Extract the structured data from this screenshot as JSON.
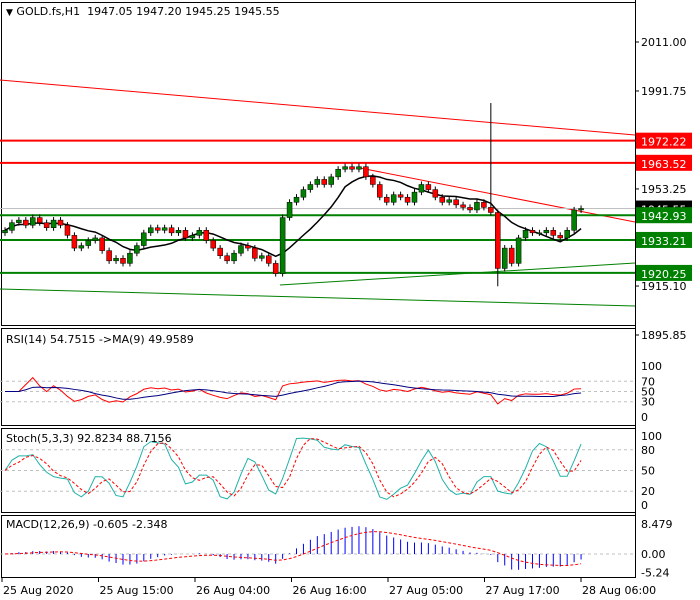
{
  "header": {
    "arrow": "▼",
    "symbol": "GOLD.fs,H1",
    "open": "1947.05",
    "high": "1947.20",
    "low": "1945.25",
    "close": "1945.55"
  },
  "colors": {
    "bull": "#008000",
    "bear": "#ff0000",
    "line_red": "#ff0000",
    "line_green": "#008000",
    "rsi": "#ff0000",
    "rsi_ma": "#000080",
    "stoch_main": "#20b2aa",
    "stoch_signal": "#ff0000",
    "macd_hist": "#0000ff",
    "macd_signal": "#ff0000"
  },
  "chart_data": {
    "type": "candlestick",
    "title": "GOLD.fs,H1",
    "price_axis": [
      "2011.00",
      "1991.75",
      "1953.25",
      "1915.10",
      "1895.85"
    ],
    "ylim": [
      1890,
      2020
    ],
    "levels": [
      {
        "price": 1972.22,
        "label": "1972.22",
        "color": "#ff0000"
      },
      {
        "price": 1963.52,
        "label": "1963.52",
        "color": "#ff0000"
      },
      {
        "price": 1945.55,
        "label": "1945.55",
        "color": "#000000"
      },
      {
        "price": 1942.93,
        "label": "1942.93",
        "color": "#008000"
      },
      {
        "price": 1933.21,
        "label": "1933.21",
        "color": "#008000"
      },
      {
        "price": 1920.25,
        "label": "1920.25",
        "color": "#008000"
      }
    ],
    "closes": [
      1937,
      1940,
      1941,
      1939,
      1942,
      1940,
      1938,
      1941,
      1939,
      1935,
      1930,
      1931,
      1933,
      1934,
      1929,
      1925,
      1926,
      1924,
      1928,
      1931,
      1936,
      1938,
      1937,
      1938,
      1936,
      1937,
      1934,
      1935,
      1937,
      1933,
      1930,
      1927,
      1925,
      1928,
      1931,
      1930,
      1926,
      1927,
      1924,
      1920,
      1942,
      1948,
      1950,
      1953,
      1955,
      1957,
      1955,
      1958,
      1961,
      1962,
      1961,
      1962,
      1958,
      1955,
      1950,
      1948,
      1951,
      1950,
      1948,
      1952,
      1955,
      1953,
      1950,
      1948,
      1949,
      1947,
      1946,
      1945,
      1948,
      1946,
      1944,
      1922,
      1930,
      1924,
      1934,
      1937,
      1936,
      1936,
      1937,
      1935,
      1934,
      1937,
      1945,
      1945.55
    ],
    "spike_high": 1987,
    "time_axis": [
      "25 Aug 2020",
      "25 Aug 15:00",
      "26 Aug 04:00",
      "26 Aug 16:00",
      "27 Aug 05:00",
      "27 Aug 17:00",
      "28 Aug 06:00"
    ],
    "rsi": {
      "label": "RSI(14) 54.7515  ->MA(9) 49.9589",
      "value": 54.7515,
      "ma": 49.9589,
      "axis": [
        "100",
        "70",
        "50",
        "30",
        "0"
      ]
    },
    "stoch": {
      "label": "Stoch(5,3,3) 92.8234 88.7156",
      "main": 92.8234,
      "signal": 88.7156,
      "axis": [
        "100",
        "80",
        "50",
        "20",
        "0"
      ]
    },
    "macd": {
      "label": "MACD(12,26,9) -0.605 -2.348",
      "main": -0.605,
      "signal": -2.348,
      "axis": [
        "8.479",
        "0.00",
        "-5.24"
      ]
    }
  }
}
